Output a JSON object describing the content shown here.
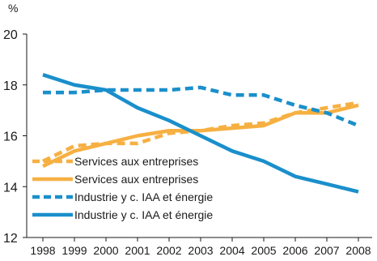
{
  "chart_data": {
    "type": "line",
    "ylabel": "%",
    "ylim": [
      12,
      20
    ],
    "yticks": [
      "12",
      "14",
      "16",
      "18",
      "20"
    ],
    "x": [
      "1998",
      "1999",
      "2000",
      "2001",
      "2002",
      "2003",
      "2004",
      "2005",
      "2006",
      "2007",
      "2008"
    ],
    "series": [
      {
        "name": "Services aux entreprises",
        "style": "dashed",
        "color": "#f6b042",
        "values": [
          15.0,
          15.6,
          15.7,
          15.7,
          16.1,
          16.2,
          16.4,
          16.5,
          16.9,
          17.1,
          17.3
        ]
      },
      {
        "name": "Services aux entreprises",
        "style": "solid",
        "color": "#f6b042",
        "values": [
          14.8,
          15.4,
          15.7,
          16.0,
          16.2,
          16.2,
          16.3,
          16.4,
          16.9,
          16.9,
          17.2
        ]
      },
      {
        "name": "Industrie y c. IAA et énergie",
        "style": "dashed",
        "color": "#1a8fcb",
        "values": [
          17.7,
          17.7,
          17.8,
          17.8,
          17.8,
          17.9,
          17.6,
          17.6,
          17.2,
          16.9,
          16.4
        ]
      },
      {
        "name": "Industrie y c. IAA et énergie",
        "style": "solid",
        "color": "#1a8fcb",
        "values": [
          18.4,
          18.0,
          17.8,
          17.1,
          16.6,
          16.0,
          15.4,
          15.0,
          14.4,
          14.1,
          13.8
        ]
      }
    ],
    "grid": false,
    "legend_position": "bottom-left"
  }
}
